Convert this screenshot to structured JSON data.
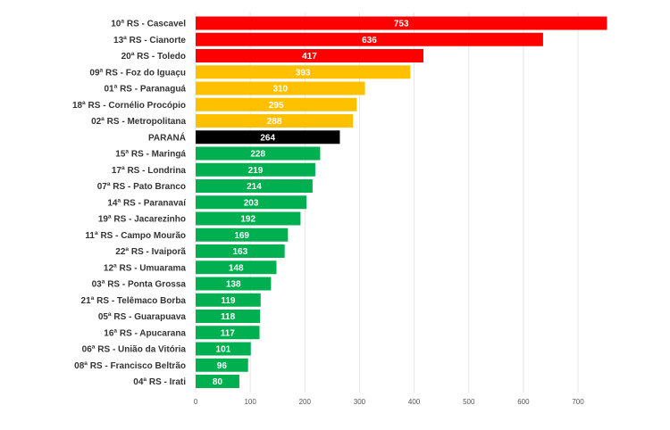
{
  "chart_data": {
    "type": "bar",
    "orientation": "horizontal",
    "title": "",
    "xlabel": "",
    "ylabel": "",
    "xlim": [
      0,
      760
    ],
    "xticks": [
      0,
      100,
      200,
      300,
      400,
      500,
      600,
      700
    ],
    "grid": true,
    "legend": "none",
    "categories": [
      "10ª RS - Cascavel",
      "13ª RS - Cianorte",
      "20ª RS - Toledo",
      "09ª RS - Foz do Iguaçu",
      "01ª RS - Paranaguá",
      "18ª RS - Cornélio Procópio",
      "02ª RS - Metropolitana",
      "PARANÁ",
      "15ª RS - Maringá",
      "17ª RS - Londrina",
      "07ª RS - Pato Branco",
      "14ª RS - Paranavaí",
      "19ª RS - Jacarezinho",
      "11ª RS - Campo Mourão",
      "22ª RS - Ivaiporã",
      "12ª RS - Umuarama",
      "03ª RS - Ponta Grossa",
      "21ª RS - Telêmaco Borba",
      "05ª RS - Guarapuava",
      "16ª RS - Apucarana",
      "06ª RS - União da Vitória",
      "08ª RS - Francisco Beltrão",
      "04ª RS - Irati"
    ],
    "values": [
      753,
      636,
      417,
      393,
      310,
      295,
      288,
      264,
      228,
      219,
      214,
      203,
      192,
      169,
      163,
      148,
      138,
      119,
      118,
      117,
      101,
      96,
      80
    ],
    "colors": [
      "#ff0000",
      "#ff0000",
      "#ff0000",
      "#ffc000",
      "#ffc000",
      "#ffc000",
      "#ffc000",
      "#000000",
      "#00b050",
      "#00b050",
      "#00b050",
      "#00b050",
      "#00b050",
      "#00b050",
      "#00b050",
      "#00b050",
      "#00b050",
      "#00b050",
      "#00b050",
      "#00b050",
      "#00b050",
      "#00b050",
      "#00b050"
    ]
  }
}
